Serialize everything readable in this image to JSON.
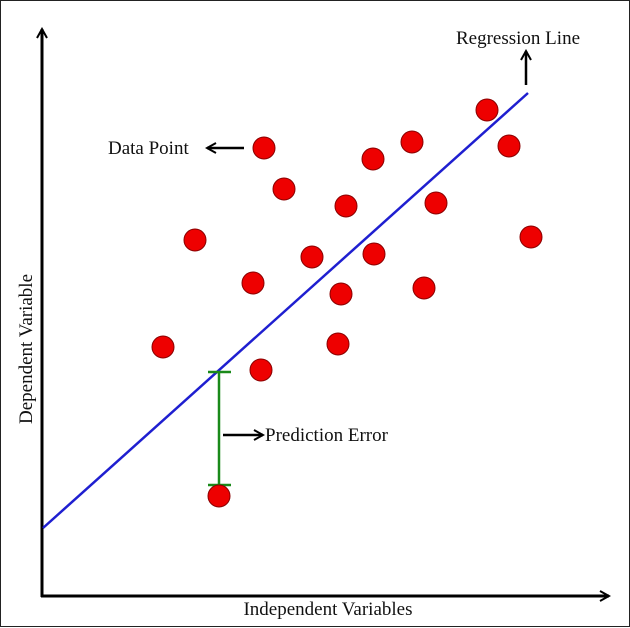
{
  "labels": {
    "regression_line": "Regression Line",
    "data_point": "Data Point",
    "prediction_error": "Prediction Error",
    "y_axis": "Dependent Variable",
    "x_axis": "Independent Variables"
  },
  "colors": {
    "axis": "#000000",
    "regression_line": "#1f1fd0",
    "point_fill": "#ee0000",
    "point_stroke": "#8a0000",
    "error_bar": "#1a8a1a"
  },
  "icons": {
    "arrow": "arrow-icon"
  }
}
